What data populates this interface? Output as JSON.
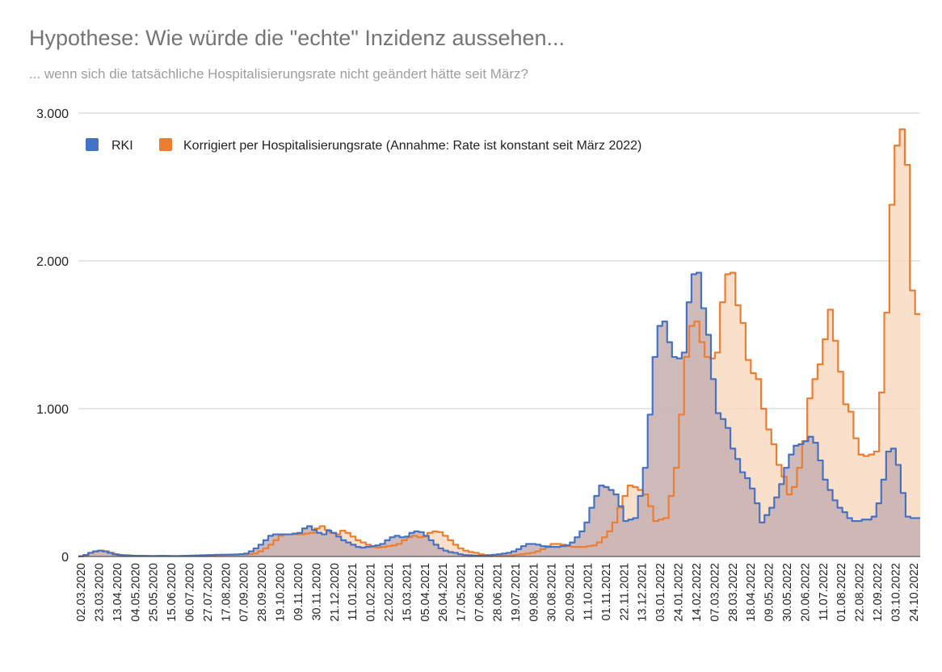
{
  "title": "Hypothese: Wie würde die \"echte\" Inzidenz aussehen...",
  "subtitle": "... wenn sich die tatsächliche Hospitalisierungsrate nicht geändert hätte seit März?",
  "colors": {
    "rki": "#4472c4",
    "corrected": "#ed7d31",
    "rki_fill": "#c9b3b3",
    "corrected_fill": "#f8d5b8",
    "grid": "#cccccc"
  },
  "chart_data": {
    "type": "area",
    "title": "Hypothese: Wie würde die \"echte\" Inzidenz aussehen...",
    "subtitle": "... wenn sich die tatsächliche Hospitalisierungsrate nicht geändert hätte seit März?",
    "xlabel": "",
    "ylabel": "",
    "ylim": [
      0,
      3000
    ],
    "yticks": [
      "0",
      "1.000",
      "2.000",
      "3.000"
    ],
    "grid": true,
    "legend_position": "top-left",
    "step": true,
    "x_tick_labels": [
      "02.03.2020",
      "23.03.2020",
      "13.04.2020",
      "04.05.2020",
      "25.05.2020",
      "15.06.2020",
      "06.07.2020",
      "27.07.2020",
      "17.08.2020",
      "07.09.2020",
      "28.09.2020",
      "19.10.2020",
      "09.11.2020",
      "30.11.2020",
      "21.12.2020",
      "11.01.2021",
      "01.02.2021",
      "22.02.2021",
      "15.03.2021",
      "05.04.2021",
      "26.04.2021",
      "17.05.2021",
      "07.06.2021",
      "28.06.2021",
      "19.07.2021",
      "09.08.2021",
      "30.08.2021",
      "20.09.2021",
      "11.10.2021",
      "01.11.2021",
      "22.11.2021",
      "13.12.2021",
      "03.01.2022",
      "24.01.2022",
      "14.02.2022",
      "07.03.2022",
      "28.03.2022",
      "18.04.2022",
      "09.05.2022",
      "30.05.2022",
      "20.06.2022",
      "11.07.2022",
      "01.08.2022",
      "22.08.2022",
      "12.09.2022",
      "03.10.2022",
      "24.10.2022"
    ],
    "series": [
      {
        "name": "RKI",
        "values": [
          2,
          10,
          25,
          35,
          40,
          35,
          25,
          15,
          10,
          8,
          6,
          5,
          4,
          4,
          3,
          3,
          4,
          4,
          3,
          3,
          3,
          4,
          5,
          6,
          7,
          8,
          9,
          10,
          12,
          12,
          12,
          13,
          14,
          16,
          20,
          35,
          55,
          80,
          110,
          140,
          150,
          150,
          150,
          150,
          155,
          160,
          190,
          205,
          180,
          160,
          150,
          175,
          160,
          135,
          110,
          95,
          80,
          65,
          60,
          65,
          70,
          75,
          85,
          110,
          130,
          140,
          130,
          135,
          160,
          170,
          165,
          140,
          110,
          80,
          55,
          40,
          30,
          25,
          15,
          10,
          8,
          6,
          5,
          5,
          8,
          12,
          15,
          20,
          25,
          35,
          50,
          70,
          85,
          85,
          80,
          70,
          65,
          65,
          65,
          70,
          75,
          95,
          130,
          170,
          230,
          330,
          410,
          480,
          470,
          450,
          420,
          340,
          240,
          250,
          260,
          410,
          600,
          960,
          1350,
          1560,
          1590,
          1450,
          1350,
          1340,
          1380,
          1720,
          1910,
          1920,
          1680,
          1500,
          1200,
          970,
          930,
          870,
          730,
          660,
          570,
          530,
          460,
          360,
          230,
          280,
          330,
          400,
          490,
          600,
          690,
          750,
          760,
          780,
          810,
          770,
          650,
          520,
          450,
          380,
          330,
          300,
          260,
          240,
          240,
          250,
          250,
          270,
          360,
          520,
          710,
          730,
          620,
          430,
          270,
          260,
          260
        ],
        "color": "#4472c4"
      },
      {
        "name": "Korrigiert per Hospitalisierungsrate (Annahme: Rate ist konstant seit März 2022)",
        "values": [
          2,
          10,
          25,
          35,
          40,
          35,
          25,
          15,
          10,
          8,
          6,
          5,
          4,
          4,
          3,
          3,
          4,
          4,
          3,
          3,
          3,
          4,
          5,
          6,
          7,
          8,
          9,
          10,
          12,
          12,
          12,
          13,
          14,
          16,
          20,
          35,
          55,
          80,
          110,
          140,
          150,
          150,
          150,
          150,
          155,
          160,
          190,
          205,
          180,
          160,
          150,
          175,
          160,
          135,
          110,
          95,
          80,
          65,
          60,
          65,
          70,
          75,
          85,
          110,
          130,
          140,
          130,
          135,
          160,
          170,
          165,
          140,
          110,
          80,
          55,
          40,
          30,
          25,
          15,
          10,
          8,
          6,
          5,
          5,
          8,
          12,
          15,
          20,
          25,
          35,
          50,
          70,
          85,
          85,
          80,
          70,
          65,
          65,
          65,
          70,
          75,
          95,
          130,
          170,
          230,
          330,
          410,
          480,
          470,
          450,
          420,
          340,
          240,
          250,
          260,
          410,
          600,
          960,
          1350,
          1560,
          1590,
          1450,
          1350,
          1340,
          1380,
          1720,
          1910,
          1920,
          1700,
          1580,
          1330,
          1240,
          1200,
          1000,
          860,
          760,
          620,
          540,
          420,
          470,
          600,
          780,
          1070,
          1200,
          1300,
          1470,
          1670,
          1460,
          1250,
          1030,
          980,
          800,
          690,
          680,
          690,
          710,
          1110,
          1650,
          2380,
          2780,
          2890,
          2650,
          1800,
          1640
        ],
        "color": "#ed7d31"
      }
    ]
  }
}
